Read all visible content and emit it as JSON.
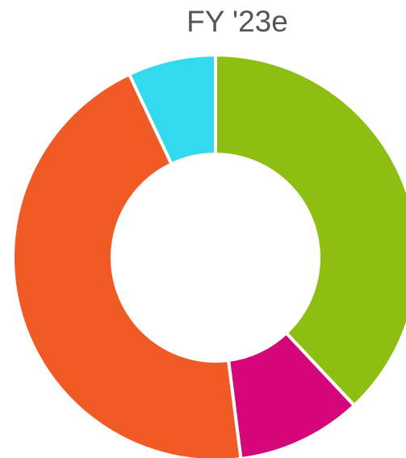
{
  "chart_data": {
    "type": "donut",
    "title": "FY '23e",
    "values": [
      38,
      10,
      45,
      7
    ],
    "colors": [
      "#8fbe13",
      "#d4067a",
      "#f05a24",
      "#33d9ec"
    ]
  }
}
